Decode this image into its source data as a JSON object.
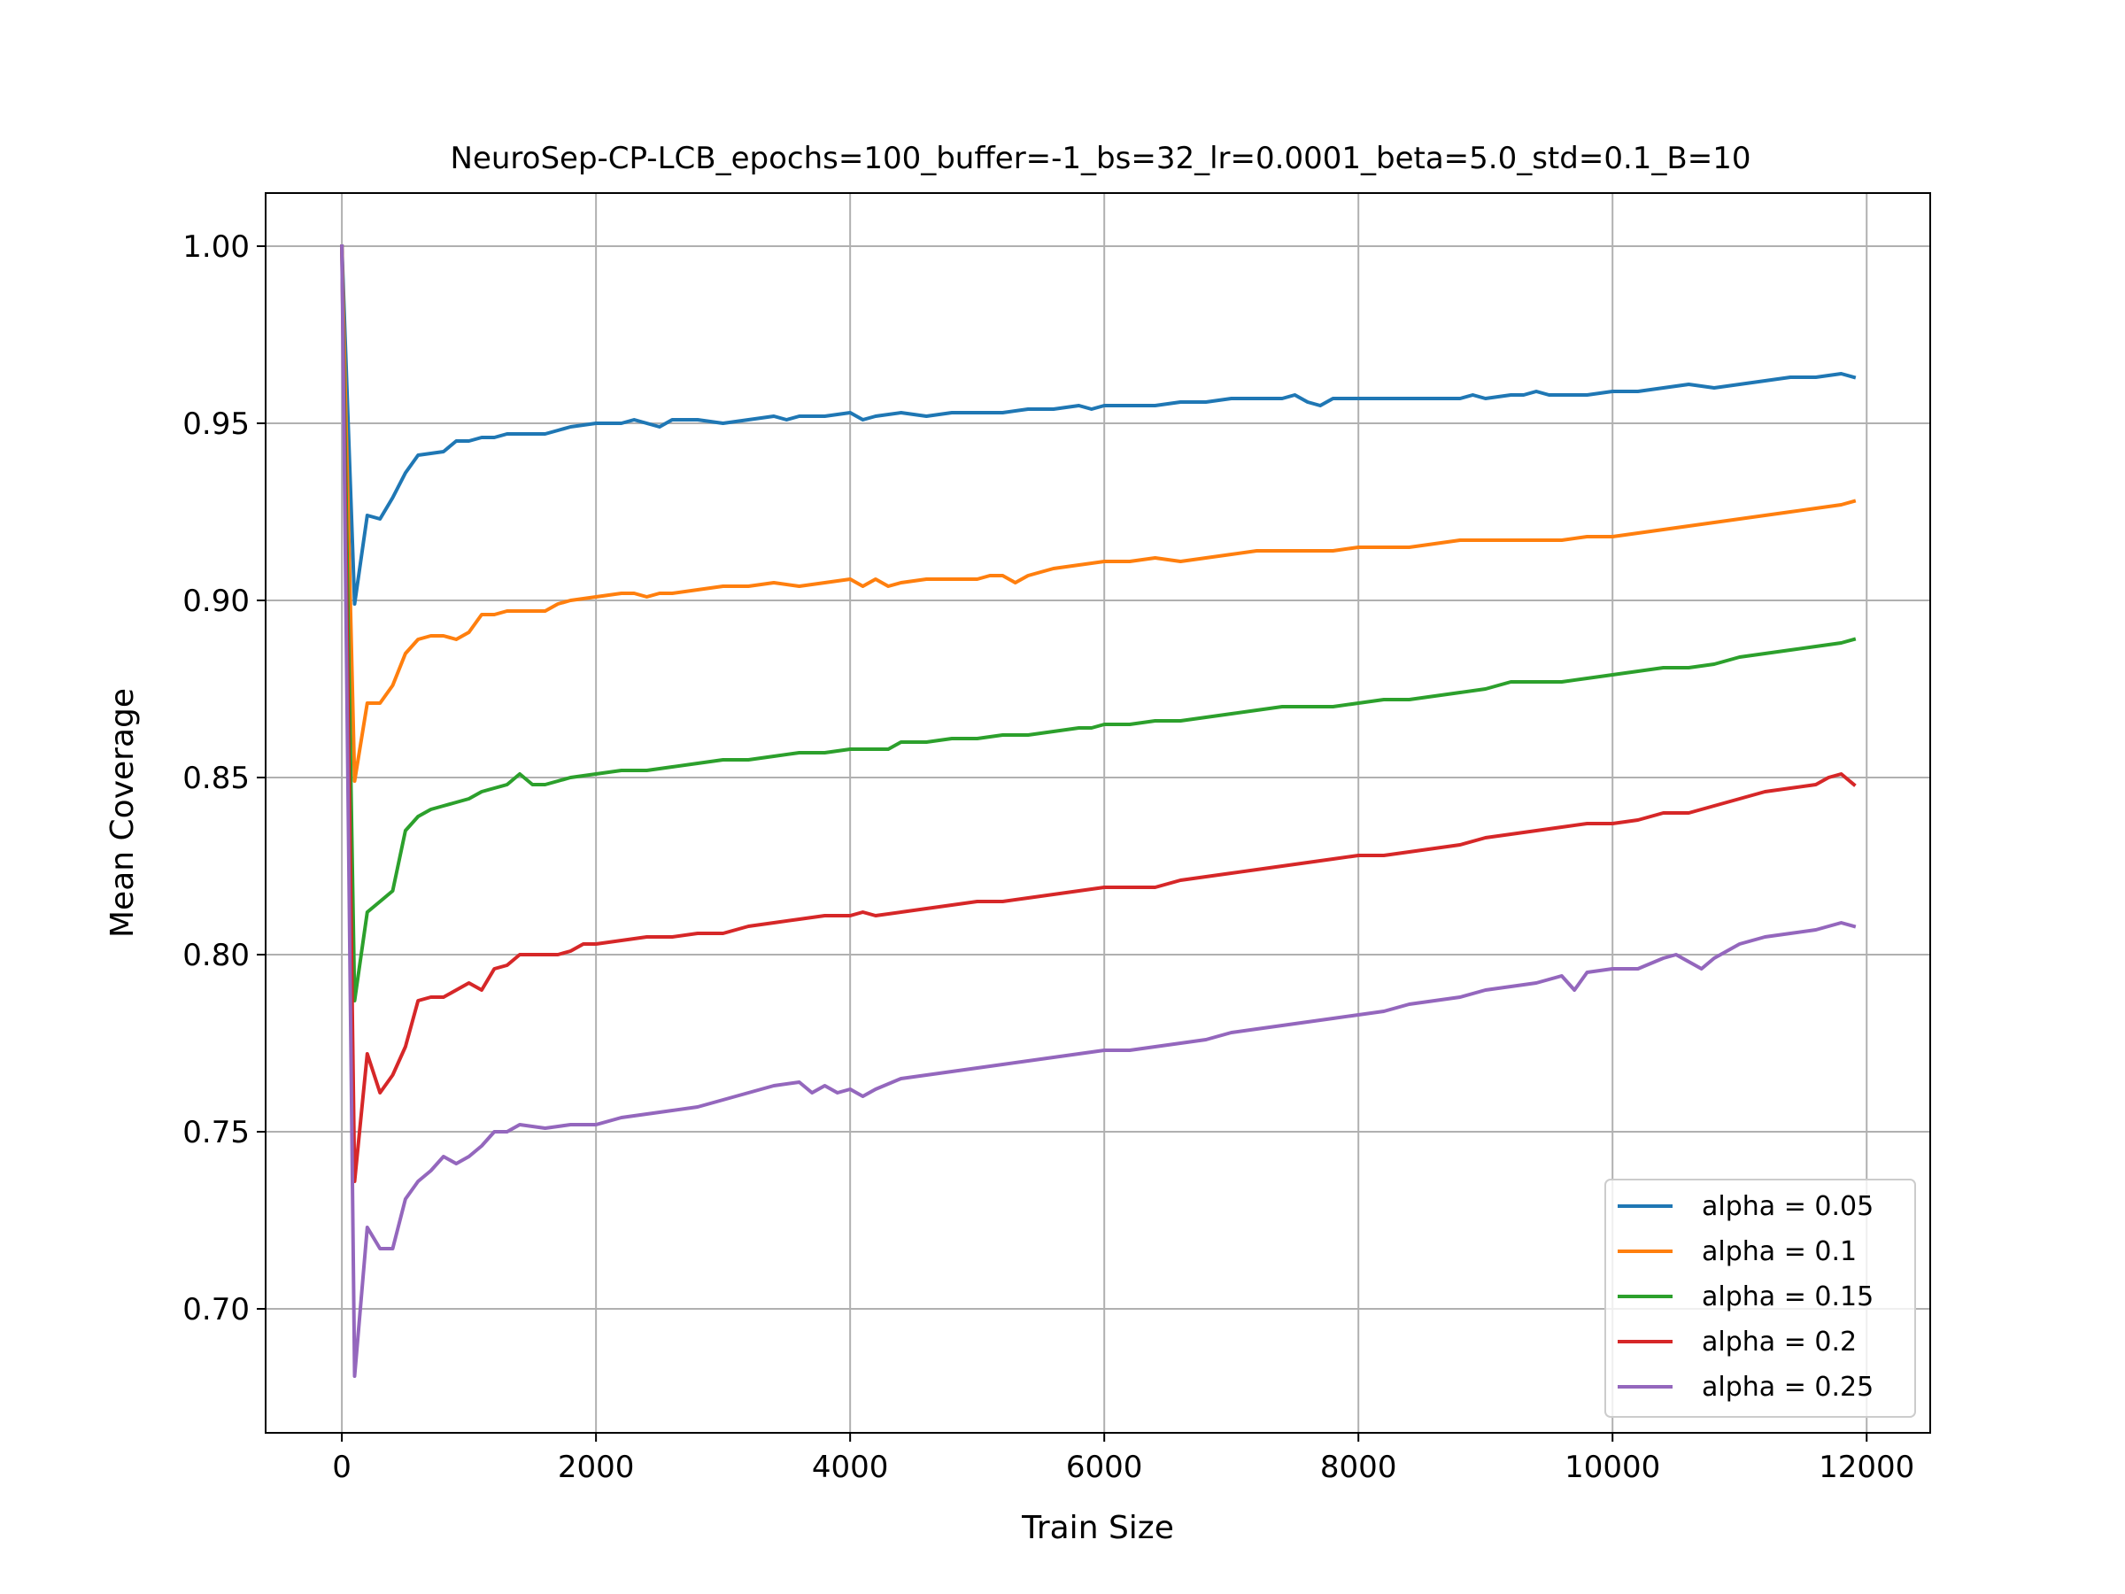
{
  "chart_data": {
    "type": "line",
    "title": "NeuroSep-CP-LCB_epochs=100_buffer=-1_bs=32_lr=0.0001_beta=5.0_std=0.1_B=10",
    "xlabel": "Train Size",
    "ylabel": "Mean Coverage",
    "xlim": [
      -600,
      12500
    ],
    "ylim": [
      0.665,
      1.015
    ],
    "xticks": [
      0,
      2000,
      4000,
      6000,
      8000,
      10000,
      12000
    ],
    "xtick_labels": [
      "0",
      "2000",
      "4000",
      "6000",
      "8000",
      "10000",
      "12000"
    ],
    "yticks": [
      0.7,
      0.75,
      0.8,
      0.85,
      0.9,
      0.95,
      1.0
    ],
    "ytick_labels": [
      "0.70",
      "0.75",
      "0.80",
      "0.85",
      "0.90",
      "0.95",
      "1.00"
    ],
    "grid": true,
    "legend_position": "lower-right",
    "series": [
      {
        "name": "alpha = 0.05",
        "color": "#1f77b4",
        "x": [
          0,
          100,
          200,
          300,
          400,
          500,
          600,
          800,
          900,
          1000,
          1100,
          1200,
          1300,
          1400,
          1600,
          1700,
          1800,
          2000,
          2200,
          2300,
          2400,
          2500,
          2600,
          2800,
          3000,
          3200,
          3400,
          3500,
          3600,
          3800,
          4000,
          4100,
          4200,
          4400,
          4600,
          4800,
          5000,
          5200,
          5400,
          5600,
          5800,
          5900,
          6000,
          6100,
          6200,
          6400,
          6600,
          6800,
          7000,
          7200,
          7400,
          7500,
          7600,
          7700,
          7800,
          8000,
          8200,
          8400,
          8600,
          8800,
          8900,
          9000,
          9200,
          9300,
          9400,
          9500,
          9600,
          9700,
          9800,
          10000,
          10200,
          10400,
          10600,
          10800,
          11000,
          11200,
          11400,
          11600,
          11800,
          11900
        ],
        "y": [
          1.0,
          0.899,
          0.924,
          0.923,
          0.929,
          0.936,
          0.941,
          0.942,
          0.945,
          0.945,
          0.946,
          0.946,
          0.947,
          0.947,
          0.947,
          0.948,
          0.949,
          0.95,
          0.95,
          0.951,
          0.95,
          0.949,
          0.951,
          0.951,
          0.95,
          0.951,
          0.952,
          0.951,
          0.952,
          0.952,
          0.953,
          0.951,
          0.952,
          0.953,
          0.952,
          0.953,
          0.953,
          0.953,
          0.954,
          0.954,
          0.955,
          0.954,
          0.955,
          0.955,
          0.955,
          0.955,
          0.956,
          0.956,
          0.957,
          0.957,
          0.957,
          0.958,
          0.956,
          0.955,
          0.957,
          0.957,
          0.957,
          0.957,
          0.957,
          0.957,
          0.958,
          0.957,
          0.958,
          0.958,
          0.959,
          0.958,
          0.958,
          0.958,
          0.958,
          0.959,
          0.959,
          0.96,
          0.961,
          0.96,
          0.961,
          0.962,
          0.963,
          0.963,
          0.964,
          0.963
        ]
      },
      {
        "name": "alpha = 0.1",
        "color": "#ff7f0e",
        "x": [
          0,
          100,
          200,
          300,
          400,
          500,
          600,
          700,
          800,
          900,
          1000,
          1100,
          1200,
          1300,
          1400,
          1600,
          1700,
          1800,
          2000,
          2200,
          2300,
          2400,
          2500,
          2600,
          2800,
          3000,
          3200,
          3400,
          3600,
          3800,
          4000,
          4100,
          4200,
          4300,
          4400,
          4600,
          4800,
          5000,
          5100,
          5200,
          5300,
          5400,
          5600,
          5800,
          6000,
          6200,
          6400,
          6600,
          6800,
          7000,
          7200,
          7400,
          7600,
          7800,
          8000,
          8200,
          8400,
          8600,
          8800,
          9000,
          9200,
          9400,
          9600,
          9800,
          10000,
          10200,
          10400,
          10600,
          10800,
          11000,
          11200,
          11400,
          11600,
          11800,
          11900
        ],
        "y": [
          1.0,
          0.849,
          0.871,
          0.871,
          0.876,
          0.885,
          0.889,
          0.89,
          0.89,
          0.889,
          0.891,
          0.896,
          0.896,
          0.897,
          0.897,
          0.897,
          0.899,
          0.9,
          0.901,
          0.902,
          0.902,
          0.901,
          0.902,
          0.902,
          0.903,
          0.904,
          0.904,
          0.905,
          0.904,
          0.905,
          0.906,
          0.904,
          0.906,
          0.904,
          0.905,
          0.906,
          0.906,
          0.906,
          0.907,
          0.907,
          0.905,
          0.907,
          0.909,
          0.91,
          0.911,
          0.911,
          0.912,
          0.911,
          0.912,
          0.913,
          0.914,
          0.914,
          0.914,
          0.914,
          0.915,
          0.915,
          0.915,
          0.916,
          0.917,
          0.917,
          0.917,
          0.917,
          0.917,
          0.918,
          0.918,
          0.919,
          0.92,
          0.921,
          0.922,
          0.923,
          0.924,
          0.925,
          0.926,
          0.927,
          0.928
        ]
      },
      {
        "name": "alpha = 0.15",
        "color": "#2ca02c",
        "x": [
          0,
          100,
          200,
          300,
          400,
          500,
          600,
          700,
          800,
          900,
          1000,
          1100,
          1200,
          1300,
          1400,
          1500,
          1600,
          1700,
          1800,
          2000,
          2200,
          2400,
          2600,
          2800,
          3000,
          3200,
          3400,
          3600,
          3800,
          4000,
          4200,
          4300,
          4400,
          4600,
          4800,
          5000,
          5200,
          5400,
          5600,
          5800,
          5900,
          6000,
          6200,
          6400,
          6600,
          6800,
          7000,
          7200,
          7400,
          7600,
          7800,
          8000,
          8200,
          8400,
          8600,
          8800,
          9000,
          9200,
          9400,
          9600,
          9800,
          10000,
          10200,
          10400,
          10600,
          10800,
          11000,
          11200,
          11400,
          11600,
          11800,
          11900
        ],
        "y": [
          1.0,
          0.787,
          0.812,
          0.815,
          0.818,
          0.835,
          0.839,
          0.841,
          0.842,
          0.843,
          0.844,
          0.846,
          0.847,
          0.848,
          0.851,
          0.848,
          0.848,
          0.849,
          0.85,
          0.851,
          0.852,
          0.852,
          0.853,
          0.854,
          0.855,
          0.855,
          0.856,
          0.857,
          0.857,
          0.858,
          0.858,
          0.858,
          0.86,
          0.86,
          0.861,
          0.861,
          0.862,
          0.862,
          0.863,
          0.864,
          0.864,
          0.865,
          0.865,
          0.866,
          0.866,
          0.867,
          0.868,
          0.869,
          0.87,
          0.87,
          0.87,
          0.871,
          0.872,
          0.872,
          0.873,
          0.874,
          0.875,
          0.877,
          0.877,
          0.877,
          0.878,
          0.879,
          0.88,
          0.881,
          0.881,
          0.882,
          0.884,
          0.885,
          0.886,
          0.887,
          0.888,
          0.889
        ]
      },
      {
        "name": "alpha = 0.2",
        "color": "#d62728",
        "x": [
          0,
          100,
          200,
          300,
          400,
          500,
          600,
          700,
          800,
          900,
          1000,
          1100,
          1200,
          1300,
          1400,
          1600,
          1700,
          1800,
          1900,
          2000,
          2200,
          2400,
          2600,
          2800,
          3000,
          3200,
          3400,
          3600,
          3800,
          4000,
          4100,
          4200,
          4400,
          4600,
          4800,
          5000,
          5200,
          5400,
          5600,
          5800,
          6000,
          6200,
          6400,
          6600,
          6800,
          7000,
          7200,
          7400,
          7600,
          7800,
          8000,
          8200,
          8400,
          8600,
          8800,
          9000,
          9200,
          9400,
          9600,
          9800,
          10000,
          10200,
          10400,
          10600,
          10800,
          11000,
          11200,
          11400,
          11600,
          11700,
          11800,
          11900
        ],
        "y": [
          1.0,
          0.736,
          0.772,
          0.761,
          0.766,
          0.774,
          0.787,
          0.788,
          0.788,
          0.79,
          0.792,
          0.79,
          0.796,
          0.797,
          0.8,
          0.8,
          0.8,
          0.801,
          0.803,
          0.803,
          0.804,
          0.805,
          0.805,
          0.806,
          0.806,
          0.808,
          0.809,
          0.81,
          0.811,
          0.811,
          0.812,
          0.811,
          0.812,
          0.813,
          0.814,
          0.815,
          0.815,
          0.816,
          0.817,
          0.818,
          0.819,
          0.819,
          0.819,
          0.821,
          0.822,
          0.823,
          0.824,
          0.825,
          0.826,
          0.827,
          0.828,
          0.828,
          0.829,
          0.83,
          0.831,
          0.833,
          0.834,
          0.835,
          0.836,
          0.837,
          0.837,
          0.838,
          0.84,
          0.84,
          0.842,
          0.844,
          0.846,
          0.847,
          0.848,
          0.85,
          0.851,
          0.848
        ]
      },
      {
        "name": "alpha = 0.25",
        "color": "#9467bd",
        "x": [
          0,
          100,
          200,
          300,
          400,
          500,
          600,
          700,
          800,
          900,
          1000,
          1100,
          1200,
          1300,
          1400,
          1600,
          1800,
          2000,
          2200,
          2400,
          2600,
          2800,
          3000,
          3200,
          3400,
          3600,
          3700,
          3800,
          3900,
          4000,
          4100,
          4200,
          4400,
          4600,
          4800,
          5000,
          5200,
          5400,
          5600,
          5800,
          6000,
          6200,
          6400,
          6600,
          6800,
          7000,
          7200,
          7400,
          7600,
          7800,
          8000,
          8200,
          8400,
          8600,
          8800,
          9000,
          9200,
          9400,
          9600,
          9700,
          9800,
          10000,
          10200,
          10400,
          10500,
          10600,
          10700,
          10800,
          11000,
          11200,
          11400,
          11600,
          11800,
          11900
        ],
        "y": [
          1.0,
          0.681,
          0.723,
          0.717,
          0.717,
          0.731,
          0.736,
          0.739,
          0.743,
          0.741,
          0.743,
          0.746,
          0.75,
          0.75,
          0.752,
          0.751,
          0.752,
          0.752,
          0.754,
          0.755,
          0.756,
          0.757,
          0.759,
          0.761,
          0.763,
          0.764,
          0.761,
          0.763,
          0.761,
          0.762,
          0.76,
          0.762,
          0.765,
          0.766,
          0.767,
          0.768,
          0.769,
          0.77,
          0.771,
          0.772,
          0.773,
          0.773,
          0.774,
          0.775,
          0.776,
          0.778,
          0.779,
          0.78,
          0.781,
          0.782,
          0.783,
          0.784,
          0.786,
          0.787,
          0.788,
          0.79,
          0.791,
          0.792,
          0.794,
          0.79,
          0.795,
          0.796,
          0.796,
          0.799,
          0.8,
          0.798,
          0.796,
          0.799,
          0.803,
          0.805,
          0.806,
          0.807,
          0.809,
          0.808
        ]
      }
    ]
  }
}
